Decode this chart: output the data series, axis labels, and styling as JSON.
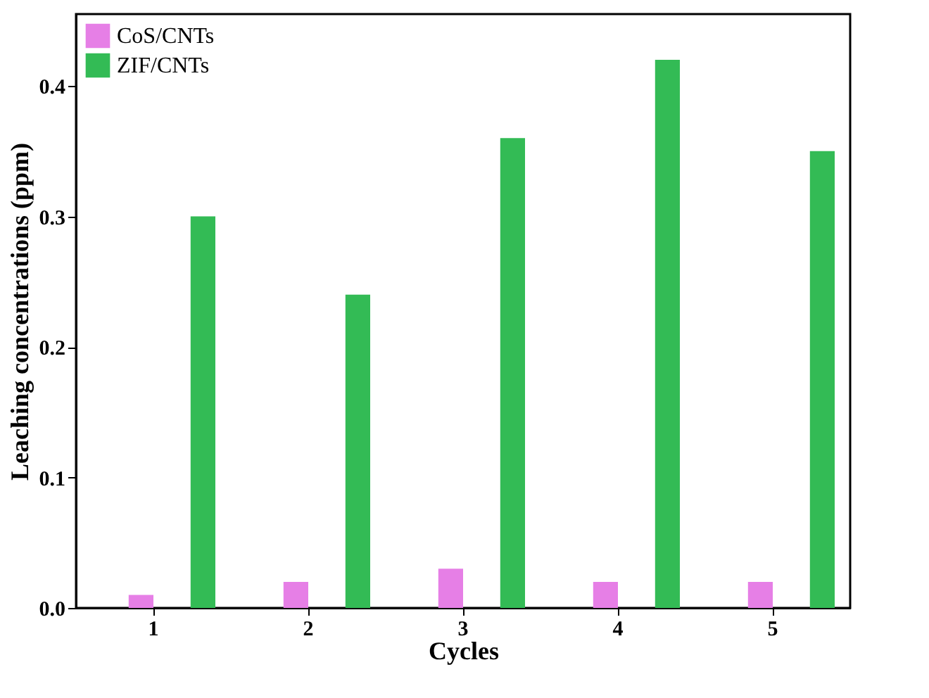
{
  "chart_data": {
    "type": "bar",
    "xlabel": "Cycles",
    "ylabel": "Leaching concentrations (ppm)",
    "categories": [
      "1",
      "2",
      "3",
      "4",
      "5"
    ],
    "series": [
      {
        "name": "CoS/CNTs",
        "color": "#e67fe6",
        "values": [
          0.01,
          0.02,
          0.03,
          0.02,
          0.02
        ]
      },
      {
        "name": "ZIF/CNTs",
        "color": "#33bb55",
        "values": [
          0.3,
          0.24,
          0.36,
          0.42,
          0.35
        ]
      }
    ],
    "ylim": [
      0,
      0.455
    ],
    "yticks": [
      {
        "value": 0,
        "label": "0.0"
      },
      {
        "value": 0.1,
        "label": "0.1"
      },
      {
        "value": 0.2,
        "label": "0.2"
      },
      {
        "value": 0.3,
        "label": "0.3"
      },
      {
        "value": 0.4,
        "label": "0.4"
      }
    ],
    "grid": false,
    "legend": "top left"
  }
}
